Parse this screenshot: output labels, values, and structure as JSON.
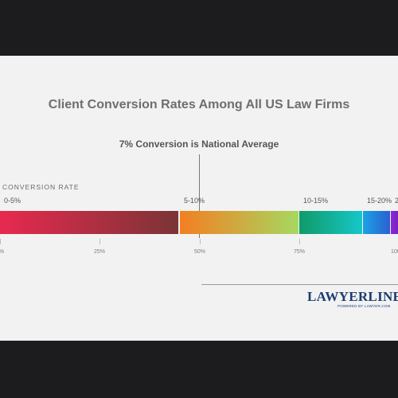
{
  "chart_data": {
    "type": "bar",
    "title": "Client Conversion Rates Among All US Law Firms",
    "annotation": "7% Conversion is National Average",
    "axis_title": "CONVERSION RATE",
    "orientation": "horizontal-stacked",
    "segments": [
      {
        "label": "0-5%",
        "start": 0,
        "end": 50,
        "colors": [
          "#e8294f",
          "#7b3436"
        ]
      },
      {
        "label": "5-10%",
        "start": 50,
        "end": 75,
        "colors": [
          "#f37f22",
          "#a6d860"
        ]
      },
      {
        "label": "10-15%",
        "start": 75,
        "end": 91,
        "colors": [
          "#109a6a",
          "#16c7c7"
        ]
      },
      {
        "label": "15-20%",
        "start": 91,
        "end": 98,
        "colors": [
          "#1aa3e4",
          "#2d5fd2"
        ]
      },
      {
        "label": "20",
        "start": 98,
        "end": 100,
        "colors": [
          "#8a2bd6",
          "#7a1fc4"
        ]
      }
    ],
    "ticks": [
      {
        "value": 0,
        "label": "0%"
      },
      {
        "value": 25,
        "label": "25%"
      },
      {
        "value": 50,
        "label": "50%"
      },
      {
        "value": 75,
        "label": "75%"
      },
      {
        "value": 100,
        "label": "100%"
      }
    ],
    "average_marker_value": 50,
    "xlim": [
      0,
      100
    ]
  },
  "logo": {
    "main": "LAWYERLINE",
    "tm": "TM",
    "sub": "POWERED BY LAWYER.COM"
  }
}
